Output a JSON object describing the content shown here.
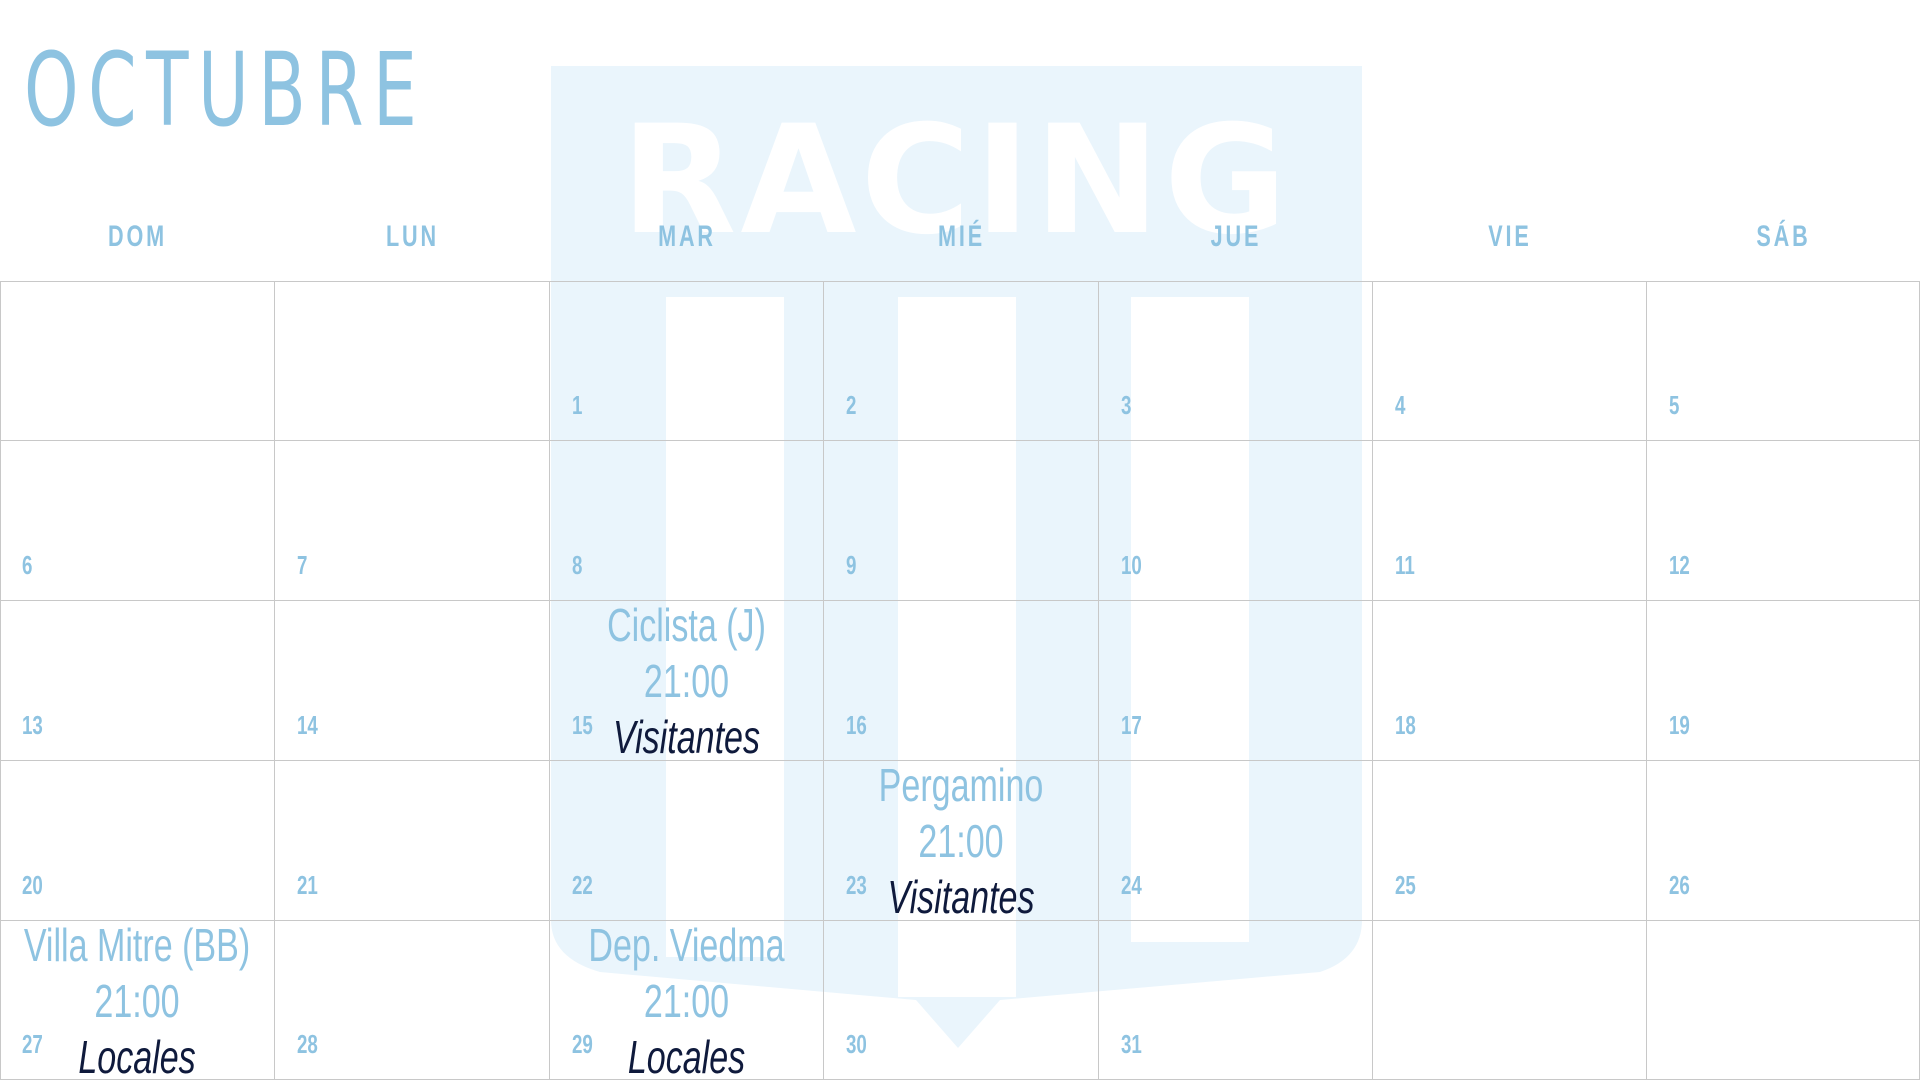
{
  "month": "OCTUBRE",
  "watermark": {
    "text": "RACING",
    "color": "#eaf5fc"
  },
  "colors": {
    "accent": "#8ec3e1",
    "venue": "#0f1a3c",
    "grid": "#c8c8c8"
  },
  "weekdays": [
    "DOM",
    "LUN",
    "MAR",
    "MIÉ",
    "JUE",
    "VIE",
    "SÁB"
  ],
  "weeks": [
    [
      "",
      "",
      "1",
      "2",
      "3",
      "4",
      "5"
    ],
    [
      "6",
      "7",
      "8",
      "9",
      "10",
      "11",
      "12"
    ],
    [
      "13",
      "14",
      "15",
      "16",
      "17",
      "18",
      "19"
    ],
    [
      "20",
      "21",
      "22",
      "23",
      "24",
      "25",
      "26"
    ],
    [
      "27",
      "28",
      "29",
      "30",
      "31",
      "",
      ""
    ]
  ],
  "events": {
    "15": {
      "opponent": "Ciclista (J)",
      "time": "21:00",
      "venue": "Visitantes"
    },
    "23": {
      "opponent": "Pergamino",
      "time": "21:00",
      "venue": "Visitantes"
    },
    "27": {
      "opponent": "Villa Mitre (BB)",
      "time": "21:00",
      "venue": "Locales"
    },
    "29": {
      "opponent": "Dep. Viedma",
      "time": "21:00",
      "venue": "Locales"
    }
  }
}
